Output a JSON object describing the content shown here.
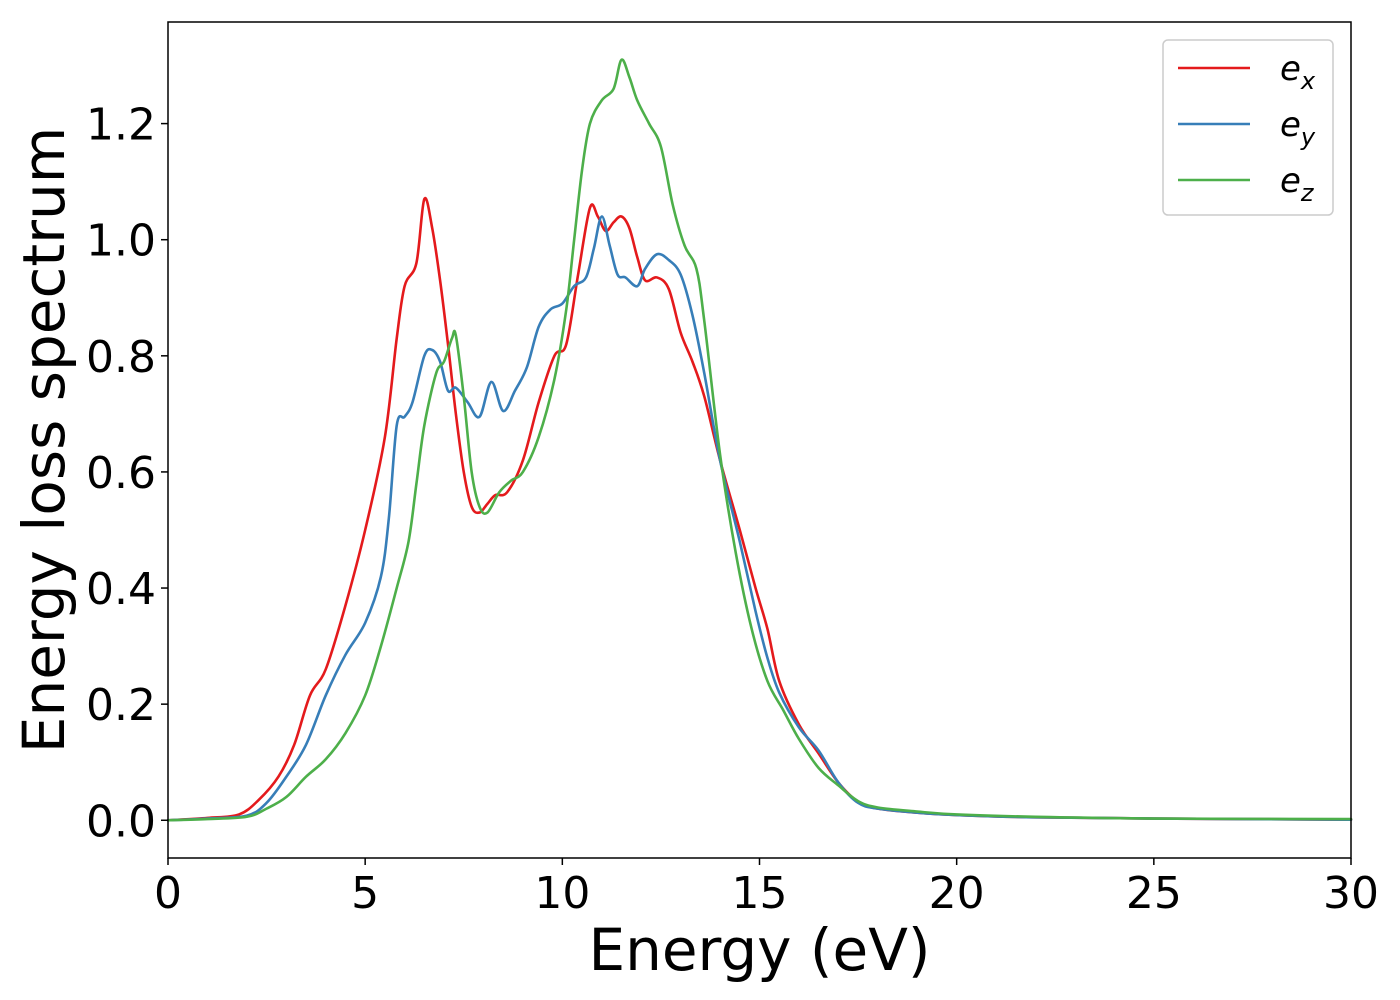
{
  "chart_data": {
    "type": "line",
    "title": "",
    "xlabel": "Energy (eV)",
    "ylabel": "Energy loss spectrum",
    "xlim": [
      0,
      30
    ],
    "ylim": [
      -0.065,
      1.375
    ],
    "xticks": [
      0,
      5,
      10,
      15,
      20,
      25,
      30
    ],
    "xtick_labels": [
      "0",
      "5",
      "10",
      "15",
      "20",
      "25",
      "30"
    ],
    "yticks": [
      0.0,
      0.2,
      0.4,
      0.6,
      0.8,
      1.0,
      1.2
    ],
    "ytick_labels": [
      "0.0",
      "0.2",
      "0.4",
      "0.6",
      "0.8",
      "1.0",
      "1.2"
    ],
    "grid": false,
    "legend_position": "top-right",
    "series": [
      {
        "name": "e_x",
        "label_base": "e",
        "label_sub": "x",
        "color": "#e41a1c",
        "points": [
          [
            0,
            0
          ],
          [
            1,
            0.004
          ],
          [
            1.8,
            0.01
          ],
          [
            2.3,
            0.035
          ],
          [
            2.8,
            0.075
          ],
          [
            3.2,
            0.13
          ],
          [
            3.6,
            0.215
          ],
          [
            4.0,
            0.26
          ],
          [
            4.5,
            0.37
          ],
          [
            5.0,
            0.5
          ],
          [
            5.5,
            0.66
          ],
          [
            5.8,
            0.83
          ],
          [
            6.0,
            0.92
          ],
          [
            6.3,
            0.96
          ],
          [
            6.5,
            1.07
          ],
          [
            6.7,
            1.02
          ],
          [
            6.9,
            0.93
          ],
          [
            7.1,
            0.82
          ],
          [
            7.3,
            0.7
          ],
          [
            7.5,
            0.6
          ],
          [
            7.7,
            0.54
          ],
          [
            7.9,
            0.53
          ],
          [
            8.1,
            0.545
          ],
          [
            8.3,
            0.56
          ],
          [
            8.6,
            0.565
          ],
          [
            9.0,
            0.62
          ],
          [
            9.4,
            0.72
          ],
          [
            9.8,
            0.8
          ],
          [
            10.1,
            0.82
          ],
          [
            10.4,
            0.94
          ],
          [
            10.7,
            1.055
          ],
          [
            10.9,
            1.04
          ],
          [
            11.1,
            1.015
          ],
          [
            11.3,
            1.03
          ],
          [
            11.5,
            1.04
          ],
          [
            11.7,
            1.02
          ],
          [
            11.9,
            0.97
          ],
          [
            12.1,
            0.93
          ],
          [
            12.4,
            0.935
          ],
          [
            12.7,
            0.915
          ],
          [
            13.0,
            0.84
          ],
          [
            13.3,
            0.79
          ],
          [
            13.6,
            0.73
          ],
          [
            14.0,
            0.62
          ],
          [
            14.5,
            0.5
          ],
          [
            14.9,
            0.4
          ],
          [
            15.2,
            0.33
          ],
          [
            15.5,
            0.24
          ],
          [
            16.0,
            0.165
          ],
          [
            16.5,
            0.115
          ],
          [
            17.0,
            0.065
          ],
          [
            17.5,
            0.032
          ],
          [
            18.0,
            0.02
          ],
          [
            19.0,
            0.013
          ],
          [
            20.0,
            0.009
          ],
          [
            22.0,
            0.005
          ],
          [
            25.0,
            0.003
          ],
          [
            30.0,
            0.001
          ]
        ]
      },
      {
        "name": "e_y",
        "label_base": "e",
        "label_sub": "y",
        "color": "#377eb8",
        "points": [
          [
            0,
            0
          ],
          [
            1,
            0.003
          ],
          [
            2.0,
            0.008
          ],
          [
            2.5,
            0.03
          ],
          [
            3.0,
            0.075
          ],
          [
            3.5,
            0.13
          ],
          [
            4.0,
            0.215
          ],
          [
            4.5,
            0.285
          ],
          [
            5.0,
            0.34
          ],
          [
            5.4,
            0.42
          ],
          [
            5.6,
            0.52
          ],
          [
            5.8,
            0.68
          ],
          [
            6.0,
            0.695
          ],
          [
            6.2,
            0.72
          ],
          [
            6.5,
            0.8
          ],
          [
            6.7,
            0.81
          ],
          [
            6.9,
            0.79
          ],
          [
            7.1,
            0.74
          ],
          [
            7.3,
            0.745
          ],
          [
            7.6,
            0.72
          ],
          [
            7.9,
            0.695
          ],
          [
            8.2,
            0.755
          ],
          [
            8.5,
            0.705
          ],
          [
            8.8,
            0.74
          ],
          [
            9.1,
            0.78
          ],
          [
            9.4,
            0.85
          ],
          [
            9.7,
            0.88
          ],
          [
            10.0,
            0.89
          ],
          [
            10.3,
            0.92
          ],
          [
            10.6,
            0.935
          ],
          [
            10.8,
            0.985
          ],
          [
            11.0,
            1.04
          ],
          [
            11.2,
            0.99
          ],
          [
            11.4,
            0.94
          ],
          [
            11.6,
            0.935
          ],
          [
            11.9,
            0.92
          ],
          [
            12.1,
            0.95
          ],
          [
            12.4,
            0.975
          ],
          [
            12.7,
            0.965
          ],
          [
            13.0,
            0.94
          ],
          [
            13.3,
            0.87
          ],
          [
            13.6,
            0.77
          ],
          [
            14.0,
            0.62
          ],
          [
            14.5,
            0.48
          ],
          [
            14.9,
            0.36
          ],
          [
            15.2,
            0.28
          ],
          [
            15.5,
            0.22
          ],
          [
            16.0,
            0.16
          ],
          [
            16.5,
            0.12
          ],
          [
            17.0,
            0.065
          ],
          [
            17.5,
            0.03
          ],
          [
            18.0,
            0.02
          ],
          [
            19.0,
            0.013
          ],
          [
            20.0,
            0.009
          ],
          [
            22.0,
            0.005
          ],
          [
            25.0,
            0.003
          ],
          [
            30.0,
            0.001
          ]
        ]
      },
      {
        "name": "e_z",
        "label_base": "e",
        "label_sub": "z",
        "color": "#4daf4a",
        "points": [
          [
            0,
            0
          ],
          [
            1,
            0.002
          ],
          [
            2.0,
            0.006
          ],
          [
            2.5,
            0.02
          ],
          [
            3.0,
            0.04
          ],
          [
            3.5,
            0.075
          ],
          [
            4.0,
            0.105
          ],
          [
            4.5,
            0.15
          ],
          [
            5.0,
            0.215
          ],
          [
            5.4,
            0.3
          ],
          [
            5.8,
            0.4
          ],
          [
            6.1,
            0.48
          ],
          [
            6.3,
            0.58
          ],
          [
            6.5,
            0.68
          ],
          [
            6.8,
            0.77
          ],
          [
            7.0,
            0.79
          ],
          [
            7.2,
            0.83
          ],
          [
            7.3,
            0.835
          ],
          [
            7.5,
            0.73
          ],
          [
            7.7,
            0.6
          ],
          [
            7.9,
            0.54
          ],
          [
            8.1,
            0.53
          ],
          [
            8.4,
            0.565
          ],
          [
            8.7,
            0.585
          ],
          [
            9.0,
            0.6
          ],
          [
            9.4,
            0.66
          ],
          [
            9.8,
            0.76
          ],
          [
            10.1,
            0.88
          ],
          [
            10.3,
            1.0
          ],
          [
            10.5,
            1.12
          ],
          [
            10.7,
            1.2
          ],
          [
            11.0,
            1.24
          ],
          [
            11.3,
            1.26
          ],
          [
            11.5,
            1.31
          ],
          [
            11.7,
            1.28
          ],
          [
            11.9,
            1.24
          ],
          [
            12.2,
            1.2
          ],
          [
            12.5,
            1.16
          ],
          [
            12.8,
            1.06
          ],
          [
            13.1,
            0.99
          ],
          [
            13.4,
            0.95
          ],
          [
            13.6,
            0.86
          ],
          [
            14.0,
            0.63
          ],
          [
            14.4,
            0.46
          ],
          [
            14.8,
            0.33
          ],
          [
            15.2,
            0.24
          ],
          [
            15.6,
            0.19
          ],
          [
            16.0,
            0.14
          ],
          [
            16.5,
            0.09
          ],
          [
            17.0,
            0.06
          ],
          [
            17.5,
            0.033
          ],
          [
            18.0,
            0.022
          ],
          [
            19.0,
            0.015
          ],
          [
            20.0,
            0.01
          ],
          [
            22.0,
            0.006
          ],
          [
            25.0,
            0.003
          ],
          [
            30.0,
            0.002
          ]
        ]
      }
    ]
  }
}
